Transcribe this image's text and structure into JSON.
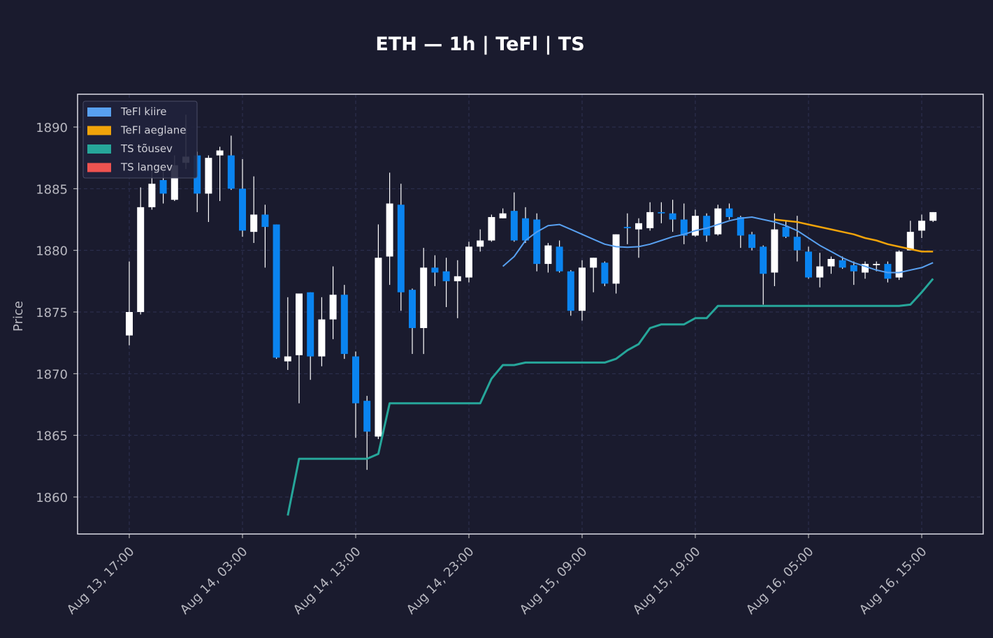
{
  "chart_data": {
    "type": "candlestick",
    "title": "ETH — 1h  |  TeFl  |  TS",
    "ylabel": "Price",
    "x": [
      "Aug 13, 17:00",
      "Aug 13, 18:00",
      "Aug 13, 19:00",
      "Aug 13, 20:00",
      "Aug 13, 21:00",
      "Aug 13, 22:00",
      "Aug 13, 23:00",
      "Aug 14, 00:00",
      "Aug 14, 01:00",
      "Aug 14, 02:00",
      "Aug 14, 03:00",
      "Aug 14, 04:00",
      "Aug 14, 05:00",
      "Aug 14, 06:00",
      "Aug 14, 07:00",
      "Aug 14, 08:00",
      "Aug 14, 09:00",
      "Aug 14, 10:00",
      "Aug 14, 11:00",
      "Aug 14, 12:00",
      "Aug 14, 13:00",
      "Aug 14, 14:00",
      "Aug 14, 15:00",
      "Aug 14, 16:00",
      "Aug 14, 17:00",
      "Aug 14, 18:00",
      "Aug 14, 19:00",
      "Aug 14, 20:00",
      "Aug 14, 21:00",
      "Aug 14, 22:00",
      "Aug 14, 23:00",
      "Aug 15, 00:00",
      "Aug 15, 01:00",
      "Aug 15, 02:00",
      "Aug 15, 03:00",
      "Aug 15, 04:00",
      "Aug 15, 05:00",
      "Aug 15, 06:00",
      "Aug 15, 07:00",
      "Aug 15, 08:00",
      "Aug 15, 09:00",
      "Aug 15, 10:00",
      "Aug 15, 11:00",
      "Aug 15, 12:00",
      "Aug 15, 13:00",
      "Aug 15, 14:00",
      "Aug 15, 15:00",
      "Aug 15, 16:00",
      "Aug 15, 17:00",
      "Aug 15, 18:00",
      "Aug 15, 19:00",
      "Aug 15, 20:00",
      "Aug 15, 21:00",
      "Aug 15, 22:00",
      "Aug 15, 23:00",
      "Aug 16, 00:00",
      "Aug 16, 01:00",
      "Aug 16, 02:00",
      "Aug 16, 03:00",
      "Aug 16, 04:00",
      "Aug 16, 05:00",
      "Aug 16, 06:00",
      "Aug 16, 07:00",
      "Aug 16, 08:00",
      "Aug 16, 09:00",
      "Aug 16, 10:00",
      "Aug 16, 11:00",
      "Aug 16, 12:00",
      "Aug 16, 13:00",
      "Aug 16, 14:00",
      "Aug 16, 15:00",
      "Aug 16, 16:00"
    ],
    "open": [
      1873.1,
      1875.0,
      1883.5,
      1885.7,
      1884.1,
      1887.1,
      1887.7,
      1884.6,
      1887.7,
      1887.7,
      1885.0,
      1881.5,
      1882.9,
      1882.1,
      1871.0,
      1871.5,
      1876.6,
      1871.4,
      1874.4,
      1876.4,
      1871.4,
      1867.8,
      1864.9,
      1879.5,
      1883.7,
      1876.8,
      1873.7,
      1878.6,
      1878.3,
      1877.5,
      1877.8,
      1880.3,
      1880.8,
      1882.6,
      1883.2,
      1882.6,
      1882.5,
      1878.9,
      1880.3,
      1878.3,
      1875.1,
      1878.6,
      1879.0,
      1877.3,
      1881.9,
      1881.7,
      1881.8,
      1883.1,
      1883.0,
      1882.5,
      1881.2,
      1882.8,
      1881.3,
      1883.4,
      1882.7,
      1881.3,
      1880.3,
      1878.2,
      1881.9,
      1881.1,
      1879.9,
      1877.8,
      1878.7,
      1879.2,
      1878.8,
      1878.2,
      1878.8,
      1878.9,
      1877.8,
      1880.0,
      1881.6,
      1882.4
    ],
    "high": [
      1879.1,
      1885.1,
      1886.4,
      1886.4,
      1887.7,
      1891.0,
      1888.0,
      1887.7,
      1888.4,
      1889.3,
      1887.4,
      1886.0,
      1883.7,
      1882.1,
      1876.2,
      1876.5,
      1876.6,
      1876.2,
      1878.7,
      1877.2,
      1871.8,
      1868.2,
      1882.1,
      1886.3,
      1885.4,
      1876.9,
      1880.2,
      1879.6,
      1879.4,
      1879.2,
      1880.7,
      1881.7,
      1882.9,
      1883.4,
      1884.7,
      1883.5,
      1883.0,
      1880.6,
      1880.8,
      1878.4,
      1879.2,
      1879.4,
      1879.1,
      1881.3,
      1883.0,
      1882.6,
      1883.9,
      1883.9,
      1884.1,
      1883.8,
      1883.3,
      1883.0,
      1883.7,
      1883.8,
      1882.8,
      1881.5,
      1880.4,
      1883.0,
      1882.4,
      1882.8,
      1880.3,
      1879.8,
      1879.5,
      1879.5,
      1879.1,
      1879.1,
      1879.1,
      1879.1,
      1880.0,
      1882.4,
      1882.9,
      1883.1
    ],
    "low": [
      1872.3,
      1874.8,
      1883.3,
      1883.8,
      1884.0,
      1886.6,
      1883.1,
      1882.3,
      1884.0,
      1884.9,
      1881.1,
      1880.6,
      1878.6,
      1871.2,
      1870.3,
      1867.6,
      1869.5,
      1870.6,
      1872.8,
      1871.2,
      1864.8,
      1862.2,
      1864.7,
      1877.2,
      1875.1,
      1871.6,
      1871.6,
      1877.1,
      1875.4,
      1874.5,
      1877.4,
      1879.9,
      1880.7,
      1882.6,
      1880.7,
      1880.6,
      1878.3,
      1878.2,
      1878.2,
      1874.7,
      1874.3,
      1876.6,
      1877.1,
      1876.5,
      1880.5,
      1879.4,
      1881.6,
      1882.2,
      1881.5,
      1880.5,
      1881.1,
      1880.7,
      1881.2,
      1882.5,
      1880.2,
      1880.0,
      1875.6,
      1877.1,
      1881.0,
      1879.1,
      1877.7,
      1877.0,
      1878.1,
      1878.5,
      1877.2,
      1877.7,
      1878.3,
      1877.4,
      1877.6,
      1880.0,
      1881.0,
      1882.3
    ],
    "close": [
      1875.0,
      1883.5,
      1885.4,
      1884.6,
      1886.9,
      1887.6,
      1884.6,
      1887.5,
      1888.1,
      1885.0,
      1881.6,
      1882.9,
      1881.9,
      1871.3,
      1871.4,
      1876.5,
      1871.4,
      1874.4,
      1876.4,
      1871.6,
      1867.6,
      1865.3,
      1879.4,
      1883.8,
      1876.6,
      1873.7,
      1878.6,
      1878.2,
      1877.5,
      1877.9,
      1880.3,
      1880.8,
      1882.7,
      1883.0,
      1880.8,
      1880.8,
      1878.9,
      1880.4,
      1878.3,
      1875.1,
      1878.6,
      1879.4,
      1877.3,
      1881.3,
      1881.8,
      1882.2,
      1883.1,
      1883.0,
      1882.5,
      1881.2,
      1882.8,
      1881.2,
      1883.4,
      1882.7,
      1881.2,
      1880.2,
      1878.1,
      1881.7,
      1881.1,
      1880.0,
      1877.8,
      1878.7,
      1879.3,
      1878.6,
      1878.3,
      1878.9,
      1878.9,
      1877.7,
      1879.9,
      1881.5,
      1882.4,
      1883.1
    ],
    "up_color": "#ffffff",
    "down_color": "#0a84f0",
    "series": [
      {
        "name": "TeFl kiire",
        "color": "#58a0f0",
        "values": [
          null,
          null,
          null,
          null,
          null,
          null,
          null,
          null,
          null,
          null,
          null,
          null,
          null,
          null,
          null,
          null,
          null,
          null,
          null,
          null,
          null,
          null,
          null,
          null,
          null,
          null,
          null,
          null,
          null,
          null,
          null,
          null,
          null,
          1878.7,
          1879.5,
          1880.8,
          1881.5,
          1882.0,
          1882.1,
          1881.7,
          1881.3,
          1880.9,
          1880.5,
          1880.3,
          1880.25,
          1880.3,
          1880.5,
          1880.8,
          1881.1,
          1881.3,
          1881.6,
          1881.8,
          1882.1,
          1882.4,
          1882.6,
          1882.7,
          1882.5,
          1882.3,
          1882.0,
          1881.6,
          1881.0,
          1880.4,
          1879.9,
          1879.4,
          1879.0,
          1878.7,
          1878.4,
          1878.2,
          1878.2,
          1878.4,
          1878.6,
          1879.0
        ]
      },
      {
        "name": "TeFl aeglane",
        "color": "#f0a30a",
        "values": [
          null,
          null,
          null,
          null,
          null,
          null,
          null,
          null,
          null,
          null,
          null,
          null,
          null,
          null,
          null,
          null,
          null,
          null,
          null,
          null,
          null,
          null,
          null,
          null,
          null,
          null,
          null,
          null,
          null,
          null,
          null,
          null,
          null,
          null,
          null,
          null,
          null,
          null,
          null,
          null,
          null,
          null,
          null,
          null,
          null,
          null,
          null,
          null,
          null,
          null,
          null,
          null,
          null,
          null,
          null,
          null,
          null,
          1882.5,
          1882.4,
          1882.3,
          1882.1,
          1881.9,
          1881.7,
          1881.5,
          1881.3,
          1881.0,
          1880.8,
          1880.5,
          1880.3,
          1880.1,
          1879.9,
          1879.9
        ]
      },
      {
        "name": "TS tõusev",
        "color": "#26a69a",
        "values": [
          null,
          null,
          null,
          null,
          null,
          null,
          null,
          null,
          null,
          null,
          null,
          null,
          null,
          null,
          1858.5,
          1863.1,
          1863.1,
          1863.1,
          1863.1,
          1863.1,
          1863.1,
          1863.1,
          1863.5,
          1867.6,
          1867.6,
          1867.6,
          1867.6,
          1867.6,
          1867.6,
          1867.6,
          1867.6,
          1867.6,
          1869.6,
          1870.7,
          1870.7,
          1870.9,
          1870.9,
          1870.9,
          1870.9,
          1870.9,
          1870.9,
          1870.9,
          1870.9,
          1871.2,
          1871.9,
          1872.4,
          1873.7,
          1874.0,
          1874.0,
          1874.0,
          1874.5,
          1874.5,
          1875.5,
          1875.5,
          1875.5,
          1875.5,
          1875.5,
          1875.5,
          1875.5,
          1875.5,
          1875.5,
          1875.5,
          1875.5,
          1875.5,
          1875.5,
          1875.5,
          1875.5,
          1875.5,
          1875.5,
          1875.6,
          1876.6,
          1877.7
        ]
      },
      {
        "name": "TS langev",
        "color": "#ef5350",
        "values": [
          null,
          null,
          null,
          null,
          null,
          null,
          null,
          null,
          null,
          null,
          null,
          null,
          null,
          null,
          null,
          null,
          null,
          null,
          null,
          null,
          null,
          null,
          null,
          null,
          null,
          null,
          null,
          null,
          null,
          null,
          null,
          null,
          null,
          null,
          null,
          null,
          null,
          null,
          null,
          null,
          null,
          null,
          null,
          null,
          null,
          null,
          null,
          null,
          null,
          null,
          null,
          null,
          null,
          null,
          null,
          null,
          null,
          null,
          null,
          null,
          null,
          null,
          null,
          null,
          null,
          null,
          null,
          null,
          null,
          null,
          null,
          null
        ]
      }
    ],
    "ylim": [
      1857.0,
      1892.66
    ],
    "yticks": [
      1860,
      1865,
      1870,
      1875,
      1880,
      1885,
      1890
    ],
    "xticks": [
      "Aug 13, 17:00",
      "Aug 14, 03:00",
      "Aug 14, 13:00",
      "Aug 14, 23:00",
      "Aug 15, 09:00",
      "Aug 15, 19:00",
      "Aug 16, 05:00",
      "Aug 16, 15:00"
    ],
    "grid": true,
    "legend": "upper left"
  }
}
